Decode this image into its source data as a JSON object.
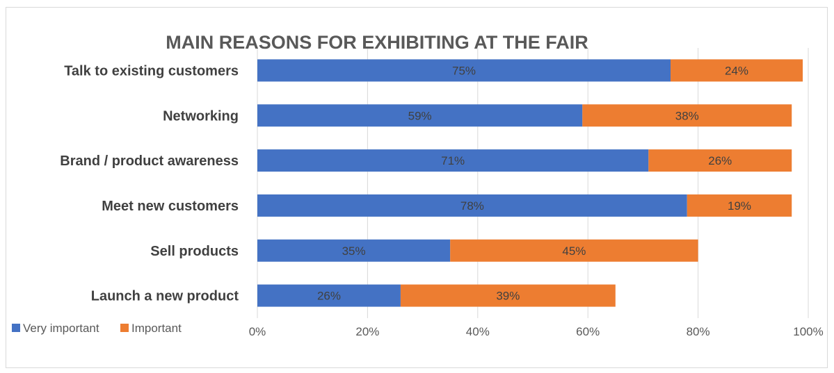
{
  "chart_data": {
    "type": "bar",
    "orientation": "horizontal",
    "stacked": true,
    "title": "MAIN REASONS FOR EXHIBITING AT THE FAIR",
    "categories": [
      "Talk to existing customers",
      "Networking",
      "Brand / product awareness",
      "Meet new customers",
      "Sell products",
      "Launch a new product"
    ],
    "series": [
      {
        "name": "Very important",
        "color": "#4472c4",
        "values": [
          75,
          59,
          71,
          78,
          35,
          26
        ]
      },
      {
        "name": "Important",
        "color": "#ed7d31",
        "values": [
          24,
          38,
          26,
          19,
          45,
          39
        ]
      }
    ],
    "x_ticks": [
      "0%",
      "20%",
      "40%",
      "60%",
      "80%",
      "100%"
    ],
    "xlim": [
      0,
      100
    ],
    "unit": "%",
    "grid": true,
    "legend": "bottom-left"
  }
}
